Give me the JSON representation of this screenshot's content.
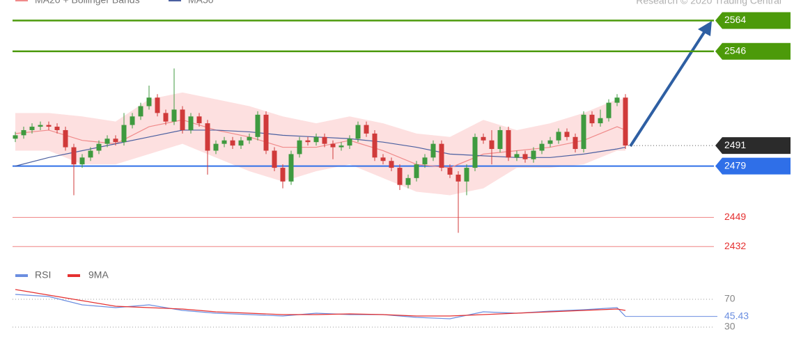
{
  "chart_data": [
    {
      "type": "candlestick",
      "credit": "Research © 2020 Trading Central",
      "ylim": [
        2426,
        2576
      ],
      "up_color": "#3f9a3f",
      "down_color": "#d03a3a",
      "open": [
        2495,
        2497,
        2500,
        2502,
        2503,
        2502,
        2500,
        2490,
        2480,
        2484,
        2488,
        2492,
        2495,
        2493,
        2503,
        2508,
        2514,
        2519,
        2510,
        2505,
        2512,
        2500,
        2508,
        2504,
        2488,
        2492,
        2494,
        2491,
        2494,
        2496,
        2509,
        2488,
        2478,
        2470,
        2486,
        2494,
        2493,
        2496,
        2492,
        2490,
        2491,
        2495,
        2503,
        2498,
        2484,
        2482,
        2478,
        2468,
        2472,
        2480,
        2484,
        2492,
        2478,
        2474,
        2470,
        2478,
        2496,
        2494,
        2489,
        2500,
        2484,
        2486,
        2483,
        2488,
        2492,
        2494,
        2499,
        2496,
        2489,
        2509,
        2504,
        2507,
        2516,
        2519
      ],
      "high": [
        2499,
        2502,
        2504,
        2505,
        2505,
        2504,
        2502,
        2492,
        2486,
        2490,
        2494,
        2497,
        2497,
        2510,
        2510,
        2516,
        2526,
        2521,
        2512,
        2536,
        2514,
        2510,
        2510,
        2506,
        2494,
        2496,
        2496,
        2496,
        2498,
        2511,
        2511,
        2490,
        2480,
        2488,
        2496,
        2496,
        2498,
        2498,
        2494,
        2493,
        2497,
        2505,
        2505,
        2500,
        2486,
        2484,
        2480,
        2474,
        2482,
        2486,
        2494,
        2494,
        2480,
        2476,
        2480,
        2498,
        2498,
        2500,
        2502,
        2502,
        2488,
        2488,
        2490,
        2494,
        2496,
        2501,
        2501,
        2498,
        2511,
        2511,
        2512,
        2518,
        2521,
        2521
      ],
      "low": [
        2493,
        2495,
        2498,
        2500,
        2500,
        2498,
        2488,
        2462,
        2478,
        2482,
        2486,
        2490,
        2491,
        2491,
        2501,
        2506,
        2512,
        2508,
        2503,
        2503,
        2498,
        2498,
        2502,
        2474,
        2486,
        2490,
        2489,
        2489,
        2492,
        2494,
        2486,
        2476,
        2466,
        2468,
        2484,
        2491,
        2491,
        2490,
        2483,
        2488,
        2489,
        2493,
        2496,
        2482,
        2480,
        2476,
        2465,
        2466,
        2470,
        2478,
        2482,
        2476,
        2472,
        2440,
        2462,
        2476,
        2492,
        2480,
        2487,
        2482,
        2482,
        2481,
        2481,
        2486,
        2490,
        2492,
        2494,
        2487,
        2487,
        2502,
        2502,
        2505,
        2514,
        2489
      ],
      "close": [
        2497,
        2500,
        2502,
        2503,
        2502,
        2500,
        2490,
        2480,
        2484,
        2488,
        2492,
        2495,
        2493,
        2503,
        2508,
        2514,
        2519,
        2510,
        2505,
        2512,
        2500,
        2508,
        2504,
        2488,
        2492,
        2494,
        2491,
        2494,
        2496,
        2509,
        2488,
        2478,
        2470,
        2486,
        2494,
        2493,
        2496,
        2492,
        2490,
        2491,
        2495,
        2503,
        2498,
        2484,
        2482,
        2478,
        2468,
        2472,
        2480,
        2484,
        2492,
        2478,
        2474,
        2470,
        2478,
        2496,
        2494,
        2489,
        2500,
        2484,
        2486,
        2483,
        2488,
        2492,
        2494,
        2499,
        2496,
        2489,
        2509,
        2504,
        2507,
        2516,
        2519,
        2491
      ],
      "overlays": {
        "x": [
          0,
          4,
          8,
          12,
          16,
          20,
          24,
          28,
          32,
          36,
          40,
          44,
          48,
          52,
          56,
          60,
          64,
          68,
          72,
          73
        ],
        "series": [
          {
            "name": "MA20 + Bollinger Bands",
            "color": "#f08a8a",
            "band_color": "#fde0e0",
            "values": [
              2498,
              2500,
              2494,
              2492,
              2502,
              2506,
              2500,
              2496,
              2490,
              2490,
              2494,
              2488,
              2480,
              2478,
              2486,
              2488,
              2490,
              2494,
              2502,
              2500
            ],
            "upper": [
              2510,
              2510,
              2508,
              2505,
              2518,
              2522,
              2518,
              2514,
              2508,
              2504,
              2508,
              2504,
              2498,
              2496,
              2506,
              2500,
              2504,
              2510,
              2518,
              2518
            ],
            "lower": [
              2488,
              2488,
              2480,
              2480,
              2486,
              2492,
              2484,
              2476,
              2470,
              2476,
              2480,
              2472,
              2464,
              2462,
              2466,
              2478,
              2478,
              2480,
              2488,
              2488
            ]
          },
          {
            "name": "MA50",
            "color": "#4a5fa0",
            "values": [
              2479,
              2484,
              2488,
              2492,
              2496,
              2500,
              2500,
              2499,
              2497,
              2496,
              2495,
              2493,
              2490,
              2486,
              2485,
              2484,
              2484,
              2486,
              2489,
              2490
            ]
          }
        ]
      },
      "levels": [
        {
          "value": 2564,
          "color": "#4c9a0a",
          "style": "box"
        },
        {
          "value": 2546,
          "color": "#4c9a0a",
          "style": "box"
        },
        {
          "value": 2491,
          "color": "#2b2b2b",
          "style": "current"
        },
        {
          "value": 2479,
          "color": "#2f6fe8",
          "style": "box"
        },
        {
          "value": 2449,
          "color": "#e53030",
          "style": "text"
        },
        {
          "value": 2432,
          "color": "#e53030",
          "style": "text"
        }
      ]
    },
    {
      "type": "line",
      "x": [
        0,
        4,
        8,
        12,
        16,
        20,
        24,
        28,
        32,
        36,
        40,
        44,
        48,
        52,
        56,
        60,
        64,
        68,
        72,
        73
      ],
      "ylim": [
        10,
        90
      ],
      "yticks": [
        70,
        30
      ],
      "series": [
        {
          "name": "RSI",
          "color": "#6b8ee0",
          "values": [
            77,
            74,
            62,
            58,
            62,
            54,
            50,
            48,
            46,
            50,
            48,
            48,
            44,
            42,
            52,
            50,
            53,
            55,
            58,
            45.43
          ]
        },
        {
          "name": "9MA",
          "color": "#e53030",
          "values": [
            84,
            76,
            68,
            60,
            58,
            56,
            52,
            50,
            48,
            48,
            49,
            48,
            46,
            46,
            48,
            50,
            52,
            54,
            56,
            54
          ]
        }
      ]
    }
  ]
}
